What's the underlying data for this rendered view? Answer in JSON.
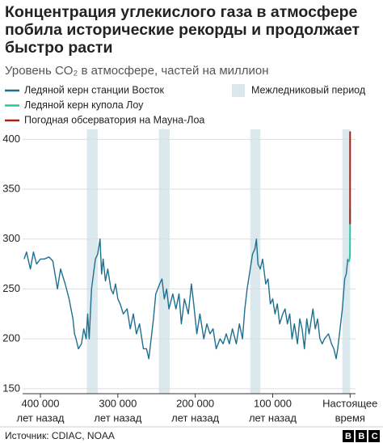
{
  "chart_data": {
    "type": "line",
    "title": "Концентрация углекислого газа в атмосфере побила исторические рекорды и продолжает быстро расти",
    "subtitle": "Уровень CO₂ в атмосфере, частей на миллион",
    "source": "Источник: CDIAC, NOAA",
    "logo": "BBC",
    "xlim": [
      423000,
      -7000
    ],
    "ylim": [
      145,
      410
    ],
    "yticks": [
      150,
      200,
      250,
      300,
      350,
      400
    ],
    "xticks": [
      {
        "value": 400000,
        "label": [
          "400 000",
          "лет назад"
        ]
      },
      {
        "value": 300000,
        "label": [
          "300 000",
          "лет назад"
        ]
      },
      {
        "value": 200000,
        "label": [
          "200 000",
          "лет назад"
        ]
      },
      {
        "value": 100000,
        "label": [
          "100 000",
          "лет назад"
        ]
      },
      {
        "value": 0,
        "label": [
          "Настоящее",
          "время"
        ]
      }
    ],
    "grid": true,
    "bands": {
      "name": "Межледниковый период",
      "color": "#dbe8ed",
      "ranges": [
        [
          340000,
          326000
        ],
        [
          247000,
          233000
        ],
        [
          129000,
          116000
        ],
        [
          10000,
          0
        ]
      ]
    },
    "series": [
      {
        "name": "Ледяной керн станции Восток",
        "color": "#1f6f8f",
        "x": [
          421000,
          418000,
          413000,
          409000,
          405000,
          400000,
          395000,
          389000,
          384000,
          378000,
          374000,
          368000,
          363000,
          360000,
          358000,
          356000,
          354000,
          351000,
          347000,
          344000,
          341000,
          339000,
          337000,
          334000,
          329000,
          326000,
          323000,
          321000,
          319000,
          316000,
          313000,
          309000,
          306000,
          303000,
          300000,
          297000,
          293000,
          288000,
          284000,
          280000,
          276000,
          272000,
          267000,
          263000,
          260000,
          257000,
          254000,
          251000,
          246000,
          243000,
          240000,
          237000,
          234000,
          229000,
          225000,
          221000,
          218000,
          214000,
          209000,
          205000,
          202000,
          198000,
          194000,
          189000,
          185000,
          181000,
          177000,
          173000,
          168000,
          164000,
          160000,
          156000,
          152000,
          147000,
          143000,
          139000,
          136000,
          133000,
          129000,
          126000,
          123000,
          121000,
          119000,
          116000,
          113000,
          109000,
          106000,
          103000,
          100000,
          97000,
          94000,
          91000,
          87000,
          84000,
          81000,
          78000,
          75000,
          72000,
          68000,
          65000,
          62000,
          59000,
          56000,
          53000,
          48000,
          45000,
          42000,
          39000,
          36000,
          33000,
          28000,
          24000,
          21000,
          18000,
          16000,
          13000,
          10000,
          7000,
          5000,
          3000
        ],
        "values": [
          280,
          287,
          270,
          287,
          275,
          280,
          280,
          282,
          278,
          250,
          270,
          255,
          240,
          228,
          220,
          205,
          200,
          190,
          195,
          210,
          200,
          225,
          200,
          250,
          280,
          285,
          300,
          265,
          280,
          258,
          270,
          250,
          245,
          255,
          240,
          235,
          225,
          230,
          210,
          225,
          205,
          215,
          190,
          190,
          180,
          200,
          220,
          245,
          255,
          260,
          240,
          250,
          230,
          245,
          230,
          245,
          215,
          240,
          225,
          255,
          235,
          205,
          225,
          200,
          215,
          205,
          210,
          190,
          200,
          195,
          205,
          195,
          210,
          195,
          215,
          200,
          230,
          250,
          270,
          285,
          290,
          300,
          275,
          270,
          280,
          255,
          260,
          235,
          240,
          225,
          235,
          215,
          225,
          230,
          215,
          225,
          200,
          215,
          195,
          220,
          210,
          190,
          220,
          205,
          230,
          210,
          220,
          200,
          195,
          200,
          205,
          195,
          190,
          180,
          190,
          210,
          230,
          260,
          265,
          280
        ]
      },
      {
        "name": "Ледяной керн купола Лоу",
        "color": "#2ec4a2",
        "x": [
          2000,
          1000,
          500,
          200,
          100,
          60,
          30
        ],
        "values": [
          277,
          279,
          281,
          283,
          296,
          311,
          331
        ]
      },
      {
        "name": "Погодная обсерватория на Мауна-Лоа",
        "color": "#a8201a",
        "x": [
          61,
          51,
          41,
          31,
          21,
          11,
          2
        ],
        "values": [
          315,
          320,
          328,
          339,
          354,
          369,
          408
        ]
      }
    ]
  }
}
